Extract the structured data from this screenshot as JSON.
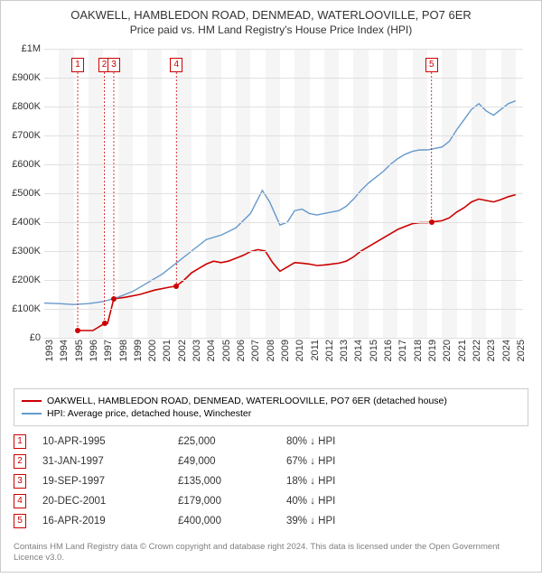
{
  "title": "OAKWELL, HAMBLEDON ROAD, DENMEAD, WATERLOOVILLE, PO7 6ER",
  "subtitle": "Price paid vs. HM Land Registry's House Price Index (HPI)",
  "chart": {
    "type": "line",
    "background_color": "#ffffff",
    "alt_band_color": "#f5f5f5",
    "grid_color": "#e0e0e0",
    "x_years": [
      1993,
      1994,
      1995,
      1996,
      1997,
      1998,
      1999,
      2000,
      2001,
      2002,
      2003,
      2004,
      2005,
      2006,
      2007,
      2008,
      2009,
      2010,
      2011,
      2012,
      2013,
      2014,
      2015,
      2016,
      2017,
      2018,
      2019,
      2020,
      2021,
      2022,
      2023,
      2024,
      2025
    ],
    "y_ticks": [
      0,
      100000,
      200000,
      300000,
      400000,
      500000,
      600000,
      700000,
      800000,
      900000,
      1000000
    ],
    "y_tick_labels": [
      "£0",
      "£100K",
      "£200K",
      "£300K",
      "£400K",
      "£500K",
      "£600K",
      "£700K",
      "£800K",
      "£900K",
      "£1M"
    ],
    "ylim": [
      0,
      1000000
    ],
    "xlim": [
      1993,
      2025.5
    ],
    "series": [
      {
        "name": "property",
        "color": "#cc0000",
        "width": 1.6,
        "points": [
          [
            1995.3,
            25000
          ],
          [
            1996.3,
            25000
          ],
          [
            1997.08,
            49000
          ],
          [
            1997.3,
            50000
          ],
          [
            1997.72,
            135000
          ],
          [
            1998.5,
            140000
          ],
          [
            1999.5,
            150000
          ],
          [
            2000.5,
            165000
          ],
          [
            2001.5,
            175000
          ],
          [
            2001.97,
            179000
          ],
          [
            2002.5,
            200000
          ],
          [
            2003.0,
            225000
          ],
          [
            2003.5,
            240000
          ],
          [
            2004.0,
            255000
          ],
          [
            2004.5,
            265000
          ],
          [
            2005.0,
            260000
          ],
          [
            2005.5,
            265000
          ],
          [
            2006.0,
            275000
          ],
          [
            2006.5,
            285000
          ],
          [
            2007.0,
            298000
          ],
          [
            2007.5,
            305000
          ],
          [
            2008.0,
            300000
          ],
          [
            2008.5,
            260000
          ],
          [
            2009.0,
            230000
          ],
          [
            2009.5,
            245000
          ],
          [
            2010.0,
            260000
          ],
          [
            2010.5,
            258000
          ],
          [
            2011.0,
            255000
          ],
          [
            2011.5,
            250000
          ],
          [
            2012.0,
            252000
          ],
          [
            2012.5,
            255000
          ],
          [
            2013.0,
            258000
          ],
          [
            2013.5,
            265000
          ],
          [
            2014.0,
            280000
          ],
          [
            2014.5,
            300000
          ],
          [
            2015.0,
            315000
          ],
          [
            2015.5,
            330000
          ],
          [
            2016.0,
            345000
          ],
          [
            2016.5,
            360000
          ],
          [
            2017.0,
            375000
          ],
          [
            2017.5,
            385000
          ],
          [
            2018.0,
            395000
          ],
          [
            2018.5,
            398000
          ],
          [
            2019.0,
            398000
          ],
          [
            2019.29,
            400000
          ],
          [
            2019.5,
            402000
          ],
          [
            2020.0,
            405000
          ],
          [
            2020.5,
            415000
          ],
          [
            2021.0,
            435000
          ],
          [
            2021.5,
            450000
          ],
          [
            2022.0,
            470000
          ],
          [
            2022.5,
            480000
          ],
          [
            2023.0,
            475000
          ],
          [
            2023.5,
            470000
          ],
          [
            2024.0,
            478000
          ],
          [
            2024.5,
            488000
          ],
          [
            2025.0,
            495000
          ]
        ]
      },
      {
        "name": "hpi",
        "color": "#6699cc",
        "width": 1.4,
        "points": [
          [
            1993.0,
            120000
          ],
          [
            1994.0,
            118000
          ],
          [
            1995.0,
            115000
          ],
          [
            1996.0,
            118000
          ],
          [
            1997.0,
            125000
          ],
          [
            1998.0,
            140000
          ],
          [
            1999.0,
            160000
          ],
          [
            2000.0,
            190000
          ],
          [
            2001.0,
            220000
          ],
          [
            2002.0,
            260000
          ],
          [
            2003.0,
            300000
          ],
          [
            2004.0,
            340000
          ],
          [
            2005.0,
            355000
          ],
          [
            2006.0,
            380000
          ],
          [
            2007.0,
            430000
          ],
          [
            2007.8,
            510000
          ],
          [
            2008.3,
            470000
          ],
          [
            2009.0,
            390000
          ],
          [
            2009.5,
            400000
          ],
          [
            2010.0,
            440000
          ],
          [
            2010.5,
            445000
          ],
          [
            2011.0,
            430000
          ],
          [
            2011.5,
            425000
          ],
          [
            2012.0,
            430000
          ],
          [
            2012.5,
            435000
          ],
          [
            2013.0,
            440000
          ],
          [
            2013.5,
            455000
          ],
          [
            2014.0,
            480000
          ],
          [
            2014.5,
            510000
          ],
          [
            2015.0,
            535000
          ],
          [
            2015.5,
            555000
          ],
          [
            2016.0,
            575000
          ],
          [
            2016.5,
            600000
          ],
          [
            2017.0,
            620000
          ],
          [
            2017.5,
            635000
          ],
          [
            2018.0,
            645000
          ],
          [
            2018.5,
            650000
          ],
          [
            2019.0,
            650000
          ],
          [
            2019.5,
            655000
          ],
          [
            2020.0,
            660000
          ],
          [
            2020.5,
            680000
          ],
          [
            2021.0,
            720000
          ],
          [
            2021.5,
            755000
          ],
          [
            2022.0,
            790000
          ],
          [
            2022.5,
            810000
          ],
          [
            2023.0,
            785000
          ],
          [
            2023.5,
            770000
          ],
          [
            2024.0,
            790000
          ],
          [
            2024.5,
            810000
          ],
          [
            2025.0,
            820000
          ]
        ]
      }
    ],
    "sale_markers": [
      {
        "n": "1",
        "year": 1995.27,
        "price": 25000
      },
      {
        "n": "2",
        "year": 1997.08,
        "price": 49000
      },
      {
        "n": "3",
        "year": 1997.72,
        "price": 135000
      },
      {
        "n": "4",
        "year": 2001.97,
        "price": 179000
      },
      {
        "n": "5",
        "year": 2019.29,
        "price": 400000
      }
    ],
    "marker_top_y": 18
  },
  "legend": {
    "items": [
      {
        "color": "#cc0000",
        "label": "OAKWELL, HAMBLEDON ROAD, DENMEAD, WATERLOOVILLE, PO7 6ER (detached house)"
      },
      {
        "color": "#6699cc",
        "label": "HPI: Average price, detached house, Winchester"
      }
    ]
  },
  "sales": [
    {
      "n": "1",
      "date": "10-APR-1995",
      "price": "£25,000",
      "diff": "80% ↓ HPI"
    },
    {
      "n": "2",
      "date": "31-JAN-1997",
      "price": "£49,000",
      "diff": "67% ↓ HPI"
    },
    {
      "n": "3",
      "date": "19-SEP-1997",
      "price": "£135,000",
      "diff": "18% ↓ HPI"
    },
    {
      "n": "4",
      "date": "20-DEC-2001",
      "price": "£179,000",
      "diff": "40% ↓ HPI"
    },
    {
      "n": "5",
      "date": "16-APR-2019",
      "price": "£400,000",
      "diff": "39% ↓ HPI"
    }
  ],
  "footnote": "Contains HM Land Registry data © Crown copyright and database right 2024. This data is licensed under the Open Government Licence v3.0."
}
